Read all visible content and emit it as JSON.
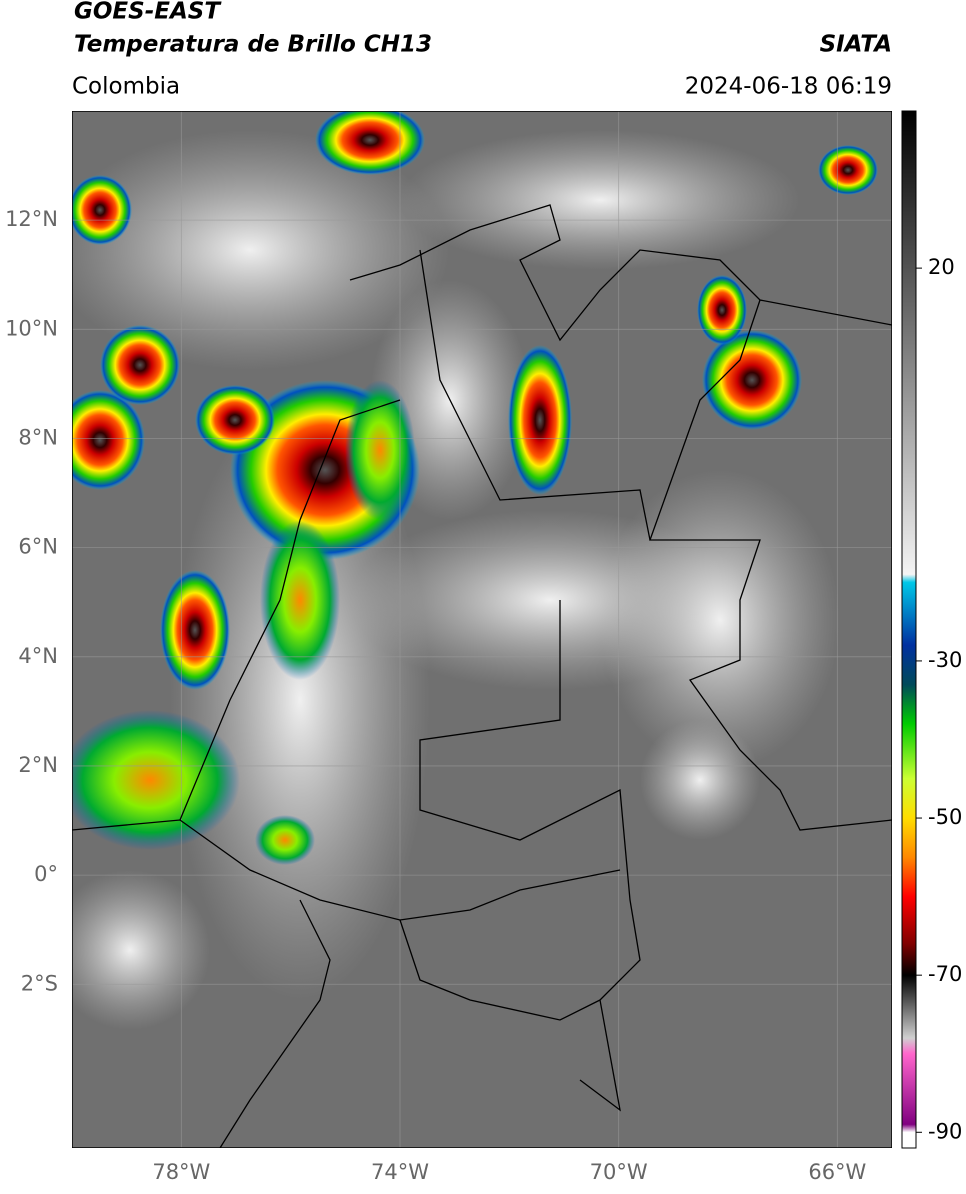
{
  "header": {
    "title_line1": "GOES-EAST",
    "title_line2": "Temperatura de Brillo CH13",
    "source": "SIATA",
    "region": "Colombia",
    "datetime": "2024-06-18 06:19"
  },
  "map": {
    "lonlim": [
      -80,
      -65
    ],
    "latlim": [
      -5,
      14
    ],
    "grid": true,
    "lat_ticks": [
      {
        "value": 12,
        "label": "12°N"
      },
      {
        "value": 10,
        "label": "10°N"
      },
      {
        "value": 8,
        "label": "8°N"
      },
      {
        "value": 6,
        "label": "6°N"
      },
      {
        "value": 4,
        "label": "4°N"
      },
      {
        "value": 2,
        "label": "2°N"
      },
      {
        "value": 0,
        "label": "0°"
      },
      {
        "value": -2,
        "label": "2°S"
      }
    ],
    "lon_ticks": [
      {
        "value": -78,
        "label": "78°W"
      },
      {
        "value": -74,
        "label": "74°W"
      },
      {
        "value": -70,
        "label": "70°W"
      },
      {
        "value": -66,
        "label": "66°W"
      }
    ]
  },
  "colorbar": {
    "lim": [
      -92,
      40
    ],
    "ticks": [
      20,
      -30,
      -50,
      -70,
      -90
    ],
    "stops": [
      {
        "value": 40,
        "color": "#000000"
      },
      {
        "value": -19,
        "color": "#f4f4f4"
      },
      {
        "value": -20,
        "color": "#00c8e8"
      },
      {
        "value": -28,
        "color": "#0030a0"
      },
      {
        "value": -33,
        "color": "#004a5a"
      },
      {
        "value": -38,
        "color": "#00cc00"
      },
      {
        "value": -45,
        "color": "#ccff33"
      },
      {
        "value": -50,
        "color": "#ffdd00"
      },
      {
        "value": -55,
        "color": "#ff8800"
      },
      {
        "value": -60,
        "color": "#ff0000"
      },
      {
        "value": -66,
        "color": "#800000"
      },
      {
        "value": -70,
        "color": "#000000"
      },
      {
        "value": -78,
        "color": "#d0d0d0"
      },
      {
        "value": -80,
        "color": "#ff66cc"
      },
      {
        "value": -89,
        "color": "#800080"
      },
      {
        "value": -90,
        "color": "#ffffff"
      }
    ]
  }
}
